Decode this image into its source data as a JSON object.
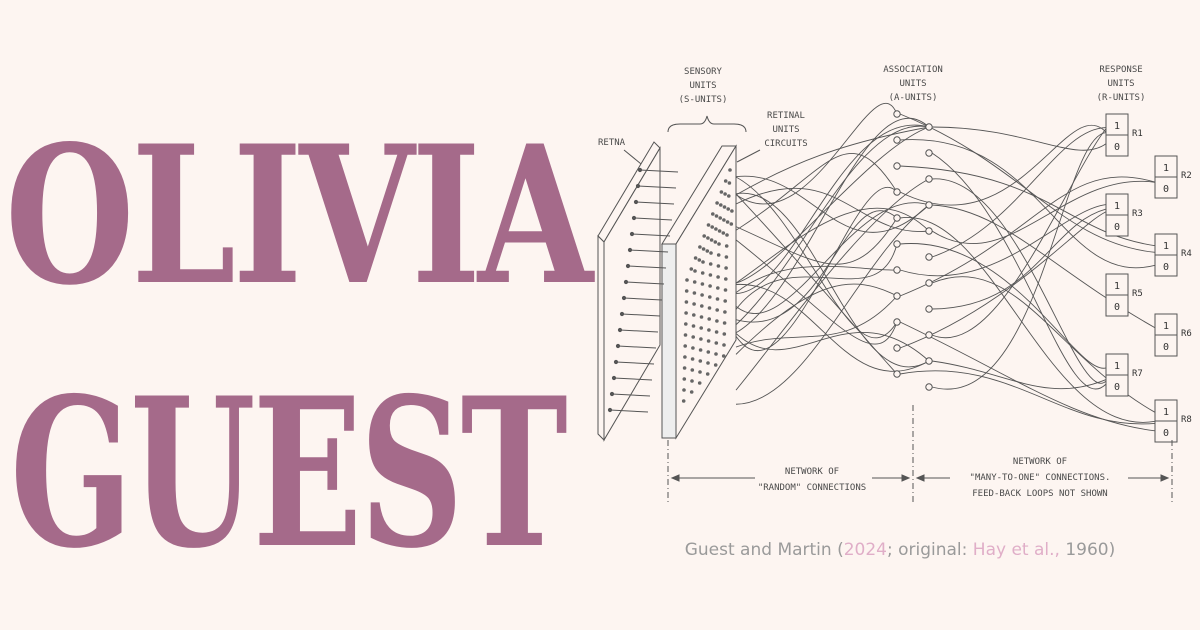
{
  "title": {
    "line1": "OLIVIA",
    "line2": "GUEST"
  },
  "diagram": {
    "headers": {
      "sensory": [
        "SENSORY",
        "UNITS",
        "(S-UNITS)"
      ],
      "association": [
        "ASSOCIATION",
        "UNITS",
        "(A-UNITS)"
      ],
      "response": [
        "RESPONSE",
        "UNITS",
        "(R-UNITS)"
      ]
    },
    "retina_label": "RETNA",
    "retinal_circuits_label": [
      "RETINAL",
      "UNITS",
      "CIRCUITS"
    ],
    "response_units": [
      {
        "label": "R1",
        "top": "1",
        "bottom": "0"
      },
      {
        "label": "R2",
        "top": "1",
        "bottom": "0"
      },
      {
        "label": "R3",
        "top": "1",
        "bottom": "0"
      },
      {
        "label": "R4",
        "top": "1",
        "bottom": "0"
      },
      {
        "label": "R5",
        "top": "1",
        "bottom": "0"
      },
      {
        "label": "R6",
        "top": "1",
        "bottom": "0"
      },
      {
        "label": "R7",
        "top": "1",
        "bottom": "0"
      },
      {
        "label": "R8",
        "top": "1",
        "bottom": "0"
      }
    ],
    "network_random": [
      "NETWORK OF",
      "\"RANDOM\" CONNECTIONS"
    ],
    "network_many": [
      "NETWORK OF",
      "\"MANY-TO-ONE\" CONNECTIONS.",
      "FEED-BACK LOOPS NOT SHOWN"
    ]
  },
  "caption": {
    "prefix": "Guest and Martin (",
    "year": "2024",
    "middle": "; original: ",
    "source": "Hay et al.,",
    "source_year": " 1960",
    "suffix": ")"
  },
  "colors": {
    "background": "#fdf5f1",
    "title": "#a56a8a",
    "caption": "#9a9a9a",
    "caption_link": "#e0aec8",
    "lines": "#555555"
  }
}
